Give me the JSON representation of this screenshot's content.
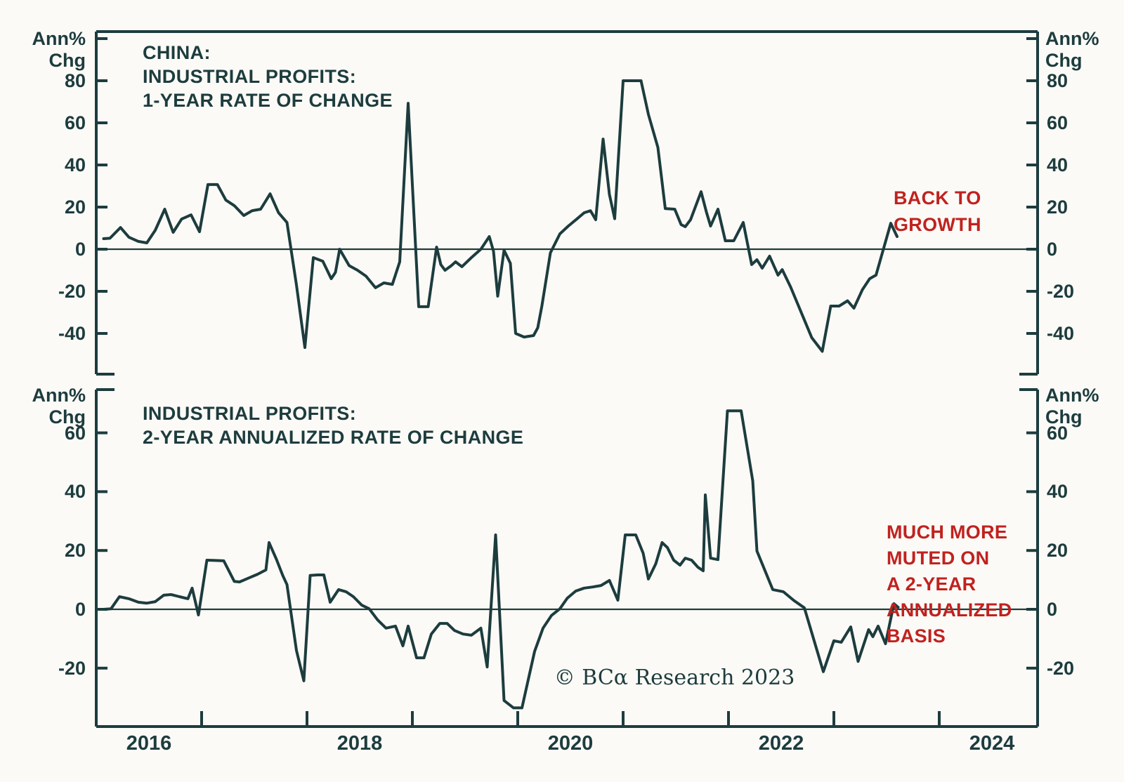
{
  "colors": {
    "ink": "#1d3c3e",
    "red": "#c0221f",
    "background": "#fbfaf6"
  },
  "panels": {
    "top": {
      "ylabel": "Ann%\nChg",
      "title": "CHINA:\nINDUSTRIAL PROFITS:\n1-YEAR RATE OF CHANGE",
      "annotation": "BACK TO\nGROWTH"
    },
    "bottom": {
      "ylabel": "Ann%\nChg",
      "title": "INDUSTRIAL PROFITS:\n2-YEAR ANNUALIZED RATE OF CHANGE",
      "annotation": "MUCH MORE\nMUTED ON\nA 2-YEAR\nANNUALIZED\nBASIS"
    }
  },
  "footer": {
    "copyright": "© BCα Research 2023"
  },
  "chart_data": [
    {
      "type": "line",
      "title": "CHINA: INDUSTRIAL PROFITS: 1-YEAR RATE OF CHANGE",
      "ylabel": "Ann% Chg",
      "ylim": [
        -59,
        103
      ],
      "yticks": [
        80,
        60,
        40,
        20,
        0,
        -20,
        -40
      ],
      "unlabeled_yticks": [
        100
      ],
      "xlim": [
        2016,
        2025
      ],
      "x_tick_years": [
        2017,
        2018,
        2019,
        2020,
        2021,
        2022,
        2023,
        2024
      ],
      "x_year_labels": [
        {
          "label": "2016",
          "t": 2016.5
        },
        {
          "label": "2018",
          "t": 2018.5
        },
        {
          "label": "2020",
          "t": 2020.5
        },
        {
          "label": "2022",
          "t": 2022.5
        },
        {
          "label": "2024",
          "t": 2024.5
        }
      ],
      "zero_line": true,
      "annotation": "BACK TO GROWTH",
      "series": [
        {
          "name": "China industrial profits, 1-year rate of change (Ann% Chg)",
          "x": [
            2016.07,
            2016.13,
            2016.23,
            2016.31,
            2016.4,
            2016.48,
            2016.56,
            2016.65,
            2016.73,
            2016.81,
            2016.9,
            2016.98,
            2017.06,
            2017.15,
            2017.23,
            2017.31,
            2017.4,
            2017.48,
            2017.56,
            2017.65,
            2017.73,
            2017.81,
            2017.9,
            2017.98,
            2018.06,
            2018.15,
            2018.23,
            2018.27,
            2018.31,
            2018.4,
            2018.48,
            2018.56,
            2018.65,
            2018.73,
            2018.81,
            2018.88,
            2018.96,
            2019.06,
            2019.15,
            2019.23,
            2019.27,
            2019.31,
            2019.37,
            2019.41,
            2019.47,
            2019.56,
            2019.65,
            2019.73,
            2019.77,
            2019.81,
            2019.87,
            2019.93,
            2019.98,
            2020.06,
            2020.15,
            2020.19,
            2020.23,
            2020.31,
            2020.4,
            2020.48,
            2020.56,
            2020.63,
            2020.69,
            2020.74,
            2020.81,
            2020.87,
            2020.92,
            2021.0,
            2021.09,
            2021.17,
            2021.24,
            2021.33,
            2021.4,
            2021.49,
            2021.55,
            2021.59,
            2021.64,
            2021.74,
            2021.79,
            2021.83,
            2021.9,
            2021.97,
            2022.05,
            2022.14,
            2022.22,
            2022.27,
            2022.32,
            2022.39,
            2022.47,
            2022.51,
            2022.59,
            2022.69,
            2022.79,
            2022.89,
            2022.97,
            2023.05,
            2023.13,
            2023.19,
            2023.27,
            2023.34,
            2023.4,
            2023.54,
            2023.6
          ],
          "y": [
            5,
            5.2,
            10.3,
            5.7,
            3.7,
            3,
            9,
            19,
            8,
            14.3,
            16.3,
            8.3,
            30.7,
            30.7,
            23.3,
            20.7,
            16,
            18.3,
            19,
            26.3,
            17.3,
            12.7,
            -17,
            -46.7,
            -4,
            -5.7,
            -14,
            -11,
            0,
            -7.8,
            -10,
            -12.8,
            -18.3,
            -16,
            -16.7,
            -6,
            69.3,
            -27.3,
            -27.3,
            1,
            -7.3,
            -10,
            -7.8,
            -6,
            -8.3,
            -4,
            0,
            6,
            -1,
            -22.3,
            -0.5,
            -6.7,
            -40,
            -41.7,
            -41,
            -37.3,
            -26.7,
            -1.7,
            7.3,
            11,
            14.3,
            17.3,
            18.3,
            14,
            52.3,
            26,
            14.5,
            80,
            80,
            80,
            64,
            48.3,
            19.3,
            19,
            11.7,
            10.7,
            14,
            27.3,
            17.7,
            11,
            19,
            4,
            4,
            12.7,
            -7.3,
            -5,
            -9,
            -3.3,
            -12.3,
            -9.7,
            -18,
            -30,
            -42,
            -48.5,
            -27,
            -27,
            -24.5,
            -28,
            -19.3,
            -14,
            -12.3,
            12.3,
            6
          ]
        }
      ]
    },
    {
      "type": "line",
      "title": "INDUSTRIAL PROFITS: 2-YEAR ANNUALIZED RATE OF CHANGE",
      "ylabel": "Ann% Chg",
      "ylim": [
        -40,
        75
      ],
      "yticks": [
        60,
        40,
        20,
        0,
        -20
      ],
      "unlabeled_yticks": [],
      "xlim": [
        2016,
        2025
      ],
      "x_tick_years": [
        2017,
        2018,
        2019,
        2020,
        2021,
        2022,
        2023,
        2024
      ],
      "x_year_labels": [
        {
          "label": "2016",
          "t": 2016.5
        },
        {
          "label": "2018",
          "t": 2018.5
        },
        {
          "label": "2020",
          "t": 2020.5
        },
        {
          "label": "2022",
          "t": 2022.5
        },
        {
          "label": "2024",
          "t": 2024.5
        }
      ],
      "zero_line": true,
      "annotation": "MUCH MORE MUTED ON A 2-YEAR ANNUALIZED BASIS",
      "series": [
        {
          "name": "China industrial profits, 2-year annualized rate of change (Ann% Chg)",
          "x": [
            2016.07,
            2016.14,
            2016.22,
            2016.31,
            2016.4,
            2016.48,
            2016.56,
            2016.64,
            2016.71,
            2016.79,
            2016.87,
            2016.91,
            2016.97,
            2017.05,
            2017.13,
            2017.21,
            2017.31,
            2017.36,
            2017.45,
            2017.53,
            2017.61,
            2017.64,
            2017.71,
            2017.77,
            2017.81,
            2017.9,
            2017.97,
            2018.03,
            2018.1,
            2018.16,
            2018.22,
            2018.3,
            2018.37,
            2018.44,
            2018.52,
            2018.59,
            2018.67,
            2018.75,
            2018.84,
            2018.91,
            2018.96,
            2019.04,
            2019.11,
            2019.18,
            2019.26,
            2019.33,
            2019.4,
            2019.48,
            2019.56,
            2019.65,
            2019.71,
            2019.79,
            2019.87,
            2019.96,
            2020.04,
            2020.1,
            2020.16,
            2020.24,
            2020.32,
            2020.4,
            2020.47,
            2020.55,
            2020.63,
            2020.71,
            2020.79,
            2020.87,
            2020.95,
            2021.02,
            2021.12,
            2021.19,
            2021.24,
            2021.31,
            2021.37,
            2021.42,
            2021.48,
            2021.54,
            2021.59,
            2021.65,
            2021.71,
            2021.76,
            2021.78,
            2021.83,
            2021.9,
            2021.99,
            2022.12,
            2022.23,
            2022.27,
            2022.42,
            2022.52,
            2022.62,
            2022.72,
            2022.9,
            2023.0,
            2023.07,
            2023.16,
            2023.23,
            2023.33,
            2023.37,
            2023.42,
            2023.49,
            2023.57,
            2023.61
          ],
          "y": [
            0,
            0.2,
            4.3,
            3.6,
            2.4,
            2.1,
            2.6,
            4.8,
            5,
            4.3,
            3.6,
            7.2,
            -1.9,
            16.7,
            16.6,
            16.5,
            9.5,
            9.3,
            10.7,
            11.9,
            13.4,
            22.7,
            17,
            11.5,
            8.4,
            -14,
            -24.3,
            11.5,
            11.7,
            11.7,
            2.4,
            6.7,
            6,
            4.3,
            1.4,
            0.2,
            -3.6,
            -6.4,
            -5.7,
            -12.4,
            -5.7,
            -16.5,
            -16.5,
            -8.4,
            -4.8,
            -4.8,
            -7.2,
            -8.4,
            -8.8,
            -6.4,
            -19.6,
            25.3,
            -31,
            -33.5,
            -33.5,
            -23.9,
            -14.3,
            -6.4,
            -2.1,
            0.2,
            3.8,
            6.2,
            7.2,
            7.6,
            8.1,
            9.8,
            3.1,
            25.3,
            25.3,
            19.1,
            10.3,
            15.5,
            22.7,
            21,
            16.7,
            15,
            17.4,
            16.7,
            14.3,
            13.1,
            38.9,
            17.4,
            16.9,
            67.5,
            67.5,
            43.7,
            19.8,
            6.7,
            6,
            3,
            0.5,
            -21.2,
            -10.7,
            -11.2,
            -6,
            -17.7,
            -6.9,
            -9.3,
            -5.7,
            -11.7,
            1.9,
            0.7
          ]
        }
      ]
    }
  ]
}
